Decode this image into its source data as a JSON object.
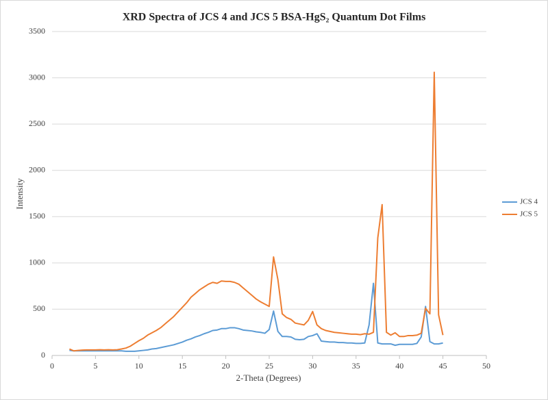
{
  "chart_data": {
    "type": "line",
    "title": "XRD Spectra of JCS 4 and JCS 5 BSA-HgS₂ Quantum Dot Films",
    "x_label": "2-Theta (Degrees)",
    "y_label": "Intensity",
    "x": [
      2,
      2.5,
      3,
      3.5,
      4,
      4.5,
      5,
      5.5,
      6,
      6.5,
      7,
      7.5,
      8,
      8.5,
      9,
      9.5,
      10,
      10.5,
      11,
      11.5,
      12,
      12.5,
      13,
      13.5,
      14,
      14.5,
      15,
      15.5,
      16,
      16.5,
      17,
      17.5,
      18,
      18.5,
      19,
      19.5,
      20,
      20.5,
      21,
      21.5,
      22,
      22.5,
      23,
      23.5,
      24,
      24.5,
      25,
      25.5,
      26,
      26.5,
      27,
      27.5,
      28,
      28.5,
      29,
      29.5,
      30,
      30.5,
      31,
      31.5,
      32,
      32.5,
      33,
      33.5,
      34,
      34.5,
      35,
      35.5,
      36,
      36.5,
      37,
      37.5,
      38,
      38.5,
      39,
      39.5,
      40,
      40.5,
      41,
      41.5,
      42,
      42.5,
      43,
      43.5,
      44,
      44.5,
      45
    ],
    "series": [
      {
        "name": "JCS 4",
        "color": "#5b9bd5",
        "values": [
          55,
          50,
          50,
          50,
          50,
          50,
          50,
          50,
          50,
          50,
          50,
          50,
          50,
          45,
          45,
          45,
          50,
          55,
          60,
          70,
          75,
          85,
          95,
          105,
          115,
          130,
          145,
          165,
          180,
          200,
          215,
          235,
          250,
          270,
          275,
          290,
          290,
          300,
          300,
          290,
          275,
          270,
          265,
          255,
          250,
          240,
          280,
          480,
          260,
          205,
          205,
          200,
          175,
          170,
          175,
          205,
          215,
          235,
          155,
          150,
          145,
          145,
          140,
          140,
          135,
          135,
          130,
          130,
          135,
          330,
          780,
          135,
          125,
          125,
          125,
          110,
          120,
          120,
          120,
          120,
          130,
          200,
          530,
          150,
          125,
          125,
          135
        ]
      },
      {
        "name": "JCS 5",
        "color": "#ed7d31",
        "values": [
          70,
          50,
          55,
          58,
          60,
          60,
          60,
          62,
          60,
          62,
          60,
          62,
          70,
          80,
          100,
          130,
          160,
          185,
          220,
          245,
          270,
          300,
          340,
          380,
          420,
          470,
          520,
          570,
          630,
          670,
          710,
          740,
          770,
          790,
          780,
          805,
          800,
          800,
          790,
          770,
          730,
          690,
          650,
          610,
          580,
          555,
          530,
          1065,
          820,
          450,
          410,
          390,
          350,
          340,
          330,
          380,
          475,
          330,
          290,
          270,
          260,
          250,
          245,
          240,
          235,
          230,
          230,
          225,
          235,
          230,
          250,
          1270,
          1630,
          250,
          220,
          245,
          205,
          205,
          215,
          215,
          220,
          240,
          510,
          450,
          3060,
          440,
          220
        ]
      }
    ],
    "xlim": [
      0,
      50
    ],
    "xticks": [
      0,
      5,
      10,
      15,
      20,
      25,
      30,
      35,
      40,
      45,
      50
    ],
    "ylim": [
      0,
      3500
    ],
    "yticks": [
      0,
      500,
      1000,
      1500,
      2000,
      2500,
      3000,
      3500
    ],
    "grid": true,
    "legend": "right"
  }
}
